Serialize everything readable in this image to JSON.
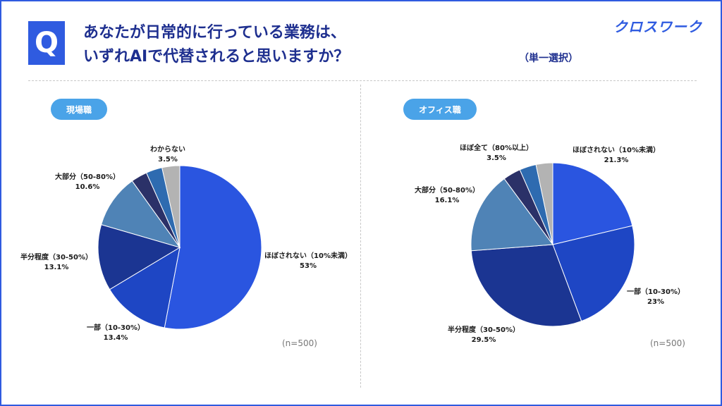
{
  "header": {
    "badge": "Q",
    "title_line1": "あなたが日常的に行っている業務は、",
    "title_line2": "いずれAIで代替されると思いますか？",
    "answer_type": "（単一選択）",
    "logo": "クロスワーク"
  },
  "colors": {
    "primary": "#2f5be0",
    "pill": "#4aa3e8"
  },
  "chart_data": [
    {
      "type": "pie",
      "title": "現場職",
      "n_label": "(n=500)",
      "slices": [
        {
          "label": "ほぼされない（10%未満）",
          "value": 53,
          "display": "53%",
          "color": "#2a55e0"
        },
        {
          "label": "一部（10-30%）",
          "value": 13.4,
          "display": "13.4%",
          "color": "#1e46c4"
        },
        {
          "label": "半分程度（30-50%）",
          "value": 13.1,
          "display": "13.1%",
          "color": "#1b3592"
        },
        {
          "label": "大部分（50-80%）",
          "value": 10.6,
          "display": "10.6%",
          "color": "#4f83b6"
        },
        {
          "label": "",
          "value": 3.2,
          "display": "",
          "color": "#2b3168"
        },
        {
          "label": "",
          "value": 3.2,
          "display": "",
          "color": "#2e6bb0"
        },
        {
          "label": "わからない",
          "value": 3.5,
          "display": "3.5%",
          "color": "#b3b3b3"
        }
      ]
    },
    {
      "type": "pie",
      "title": "オフィス職",
      "n_label": "(n=500)",
      "slices": [
        {
          "label": "ほぼされない（10%未満）",
          "value": 21.3,
          "display": "21.3%",
          "color": "#2a55e0"
        },
        {
          "label": "一部（10-30%）",
          "value": 23,
          "display": "23%",
          "color": "#1e46c4"
        },
        {
          "label": "半分程度（30-50%）",
          "value": 29.5,
          "display": "29.5%",
          "color": "#1b3592"
        },
        {
          "label": "大部分（50-80%）",
          "value": 16.1,
          "display": "16.1%",
          "color": "#4f83b6"
        },
        {
          "label": "ほぼ全て（80%以上）",
          "value": 3.5,
          "display": "3.5%",
          "color": "#2b3168"
        },
        {
          "label": "",
          "value": 3.3,
          "display": "",
          "color": "#2e6bb0"
        },
        {
          "label": "",
          "value": 3.3,
          "display": "",
          "color": "#b3b3b3"
        }
      ]
    }
  ]
}
